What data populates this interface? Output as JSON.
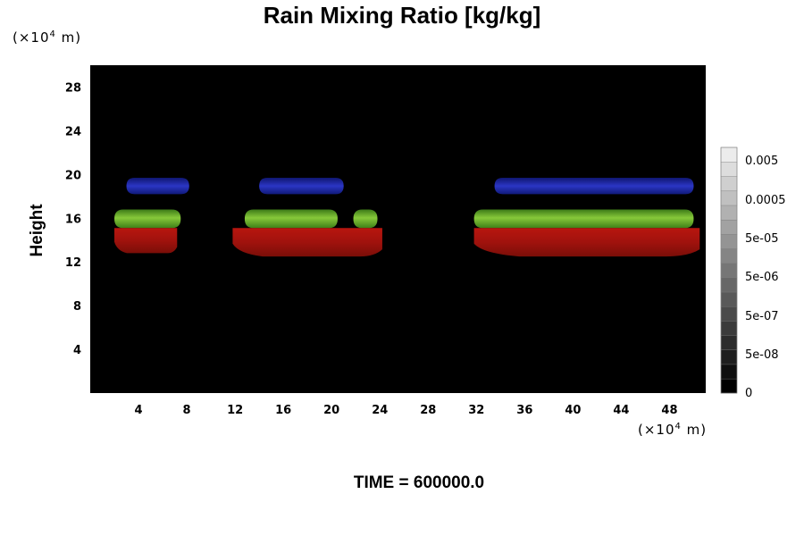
{
  "chart_data": {
    "type": "heatmap",
    "title": "Rain Mixing Ratio [kg/kg]",
    "ylabel": "Height",
    "xlabel": "",
    "x_unit": {
      "prefix": "(×10",
      "exp": "4",
      "suffix": " m)"
    },
    "y_unit": {
      "prefix": "(×10",
      "exp": "4",
      "suffix": " m)"
    },
    "xlim": [
      0,
      51
    ],
    "ylim": [
      0,
      30
    ],
    "x_ticks": [
      4,
      8,
      12,
      16,
      20,
      24,
      28,
      32,
      36,
      40,
      44,
      48
    ],
    "y_ticks": [
      4,
      8,
      12,
      16,
      20,
      24,
      28
    ],
    "colorbar": {
      "ticks": [
        "0.005",
        "0.0005",
        "5e-05",
        "5e-06",
        "5e-07",
        "5e-08",
        "0"
      ],
      "levels": 17
    },
    "regions": [
      {
        "color": "blue",
        "x": [
          3,
          8.2
        ],
        "y": [
          18.2,
          19.7
        ]
      },
      {
        "color": "blue",
        "x": [
          14,
          21
        ],
        "y": [
          18.2,
          19.7
        ]
      },
      {
        "color": "blue",
        "x": [
          33.5,
          50
        ],
        "y": [
          18.2,
          19.7
        ]
      },
      {
        "color": "green",
        "x": [
          2,
          7.5
        ],
        "y": [
          15.1,
          16.8
        ]
      },
      {
        "color": "green",
        "x": [
          12.8,
          20.5
        ],
        "y": [
          15.1,
          16.8
        ]
      },
      {
        "color": "green",
        "x": [
          21.8,
          23.8
        ],
        "y": [
          15.1,
          16.8
        ]
      },
      {
        "color": "green",
        "x": [
          31.8,
          50
        ],
        "y": [
          15.1,
          16.8
        ]
      },
      {
        "color": "red",
        "x": [
          2,
          7.2
        ],
        "y": [
          12.8,
          15.1
        ]
      },
      {
        "color": "red",
        "x": [
          11.8,
          24.2
        ],
        "y": [
          12.5,
          15.1
        ]
      },
      {
        "color": "red",
        "x": [
          31.8,
          50.5
        ],
        "y": [
          12.5,
          15.1
        ]
      }
    ],
    "colors": {
      "background": "#000000",
      "blue": "#1c27b0",
      "green": "#5aa428",
      "red": "#a21410"
    }
  },
  "footer": {
    "label": "TIME = 600000.0"
  }
}
